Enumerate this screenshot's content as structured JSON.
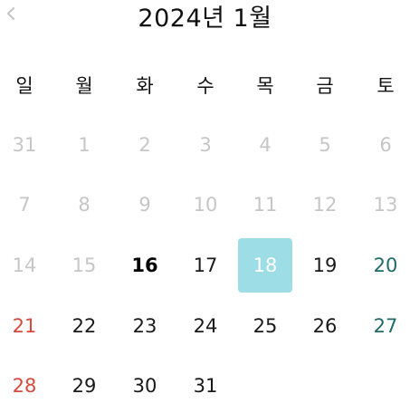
{
  "header": {
    "title": "2024년 1월",
    "prev_icon": "chevron-left-icon"
  },
  "weekdays": [
    "일",
    "월",
    "화",
    "수",
    "목",
    "금",
    "토"
  ],
  "colors": {
    "muted": "#c6c6c6",
    "selected_bg": "#9ddde5",
    "sunday": "#d84a3c",
    "saturday": "#1f6b6b",
    "text": "#1a1a1a"
  },
  "weeks": [
    [
      {
        "label": "31",
        "state": "muted"
      },
      {
        "label": "1",
        "state": "muted"
      },
      {
        "label": "2",
        "state": "muted"
      },
      {
        "label": "3",
        "state": "muted"
      },
      {
        "label": "4",
        "state": "muted"
      },
      {
        "label": "5",
        "state": "muted"
      },
      {
        "label": "6",
        "state": "muted"
      }
    ],
    [
      {
        "label": "7",
        "state": "muted"
      },
      {
        "label": "8",
        "state": "muted"
      },
      {
        "label": "9",
        "state": "muted"
      },
      {
        "label": "10",
        "state": "muted"
      },
      {
        "label": "11",
        "state": "muted"
      },
      {
        "label": "12",
        "state": "muted"
      },
      {
        "label": "13",
        "state": "muted"
      }
    ],
    [
      {
        "label": "14",
        "state": "muted"
      },
      {
        "label": "15",
        "state": "muted"
      },
      {
        "label": "16",
        "state": "today"
      },
      {
        "label": "17",
        "state": "normal"
      },
      {
        "label": "18",
        "state": "selected"
      },
      {
        "label": "19",
        "state": "normal"
      },
      {
        "label": "20",
        "state": "saturday"
      }
    ],
    [
      {
        "label": "21",
        "state": "sunday"
      },
      {
        "label": "22",
        "state": "normal"
      },
      {
        "label": "23",
        "state": "normal"
      },
      {
        "label": "24",
        "state": "normal"
      },
      {
        "label": "25",
        "state": "normal"
      },
      {
        "label": "26",
        "state": "normal"
      },
      {
        "label": "27",
        "state": "saturday"
      }
    ],
    [
      {
        "label": "28",
        "state": "sunday"
      },
      {
        "label": "29",
        "state": "normal"
      },
      {
        "label": "30",
        "state": "normal"
      },
      {
        "label": "31",
        "state": "normal"
      }
    ]
  ]
}
